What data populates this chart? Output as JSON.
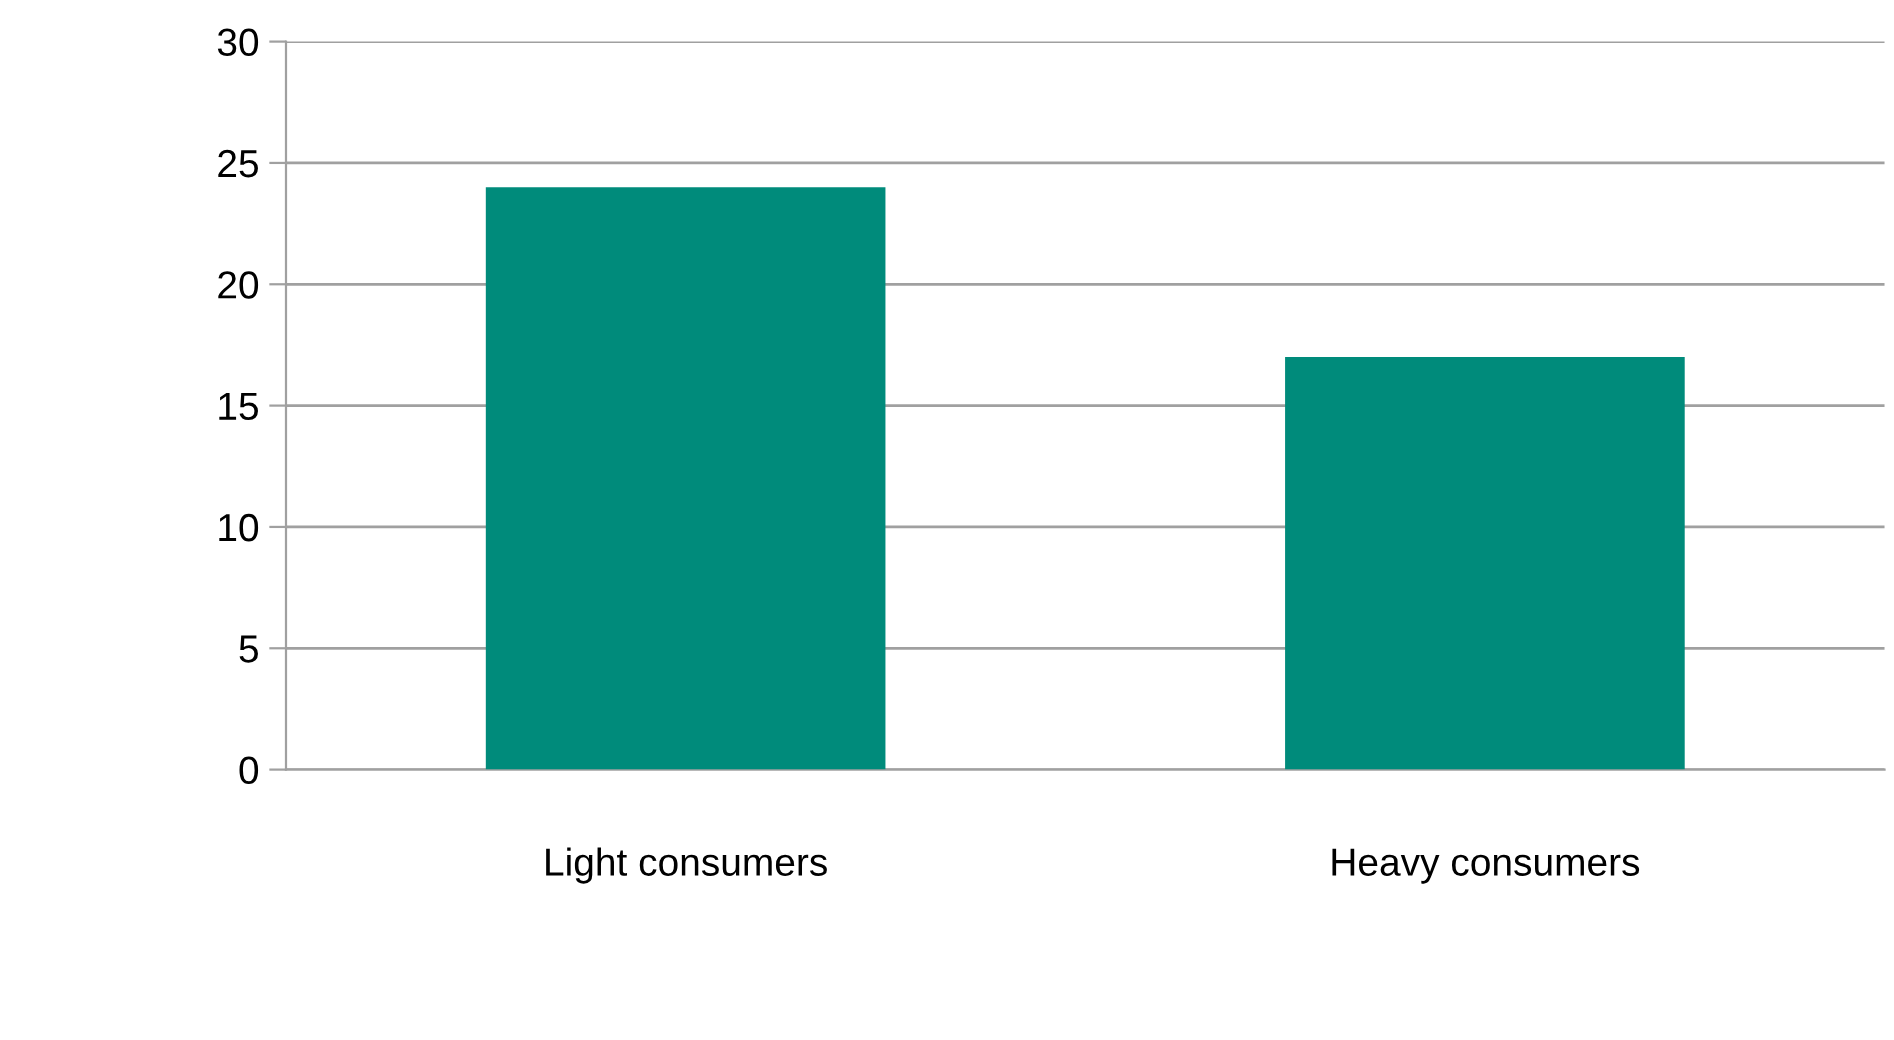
{
  "chart_data": {
    "type": "bar",
    "categories": [
      "Light consumers",
      "Heavy consumers"
    ],
    "values": [
      24,
      17
    ],
    "color": "#008b7b",
    "ylim": [
      0,
      30
    ],
    "yticks": [
      0,
      5,
      10,
      15,
      20,
      25,
      30
    ],
    "grid": "y",
    "legend": false
  }
}
